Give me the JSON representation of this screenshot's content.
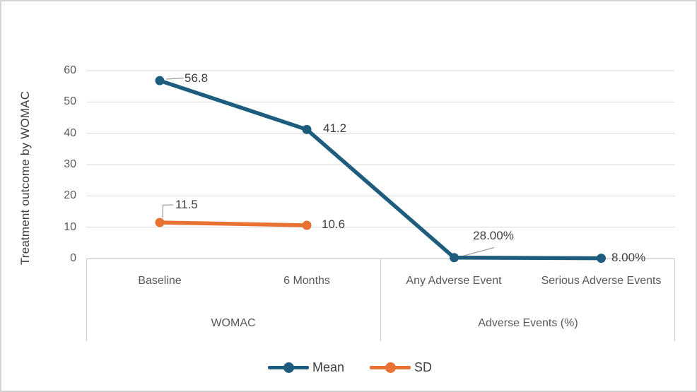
{
  "figure": {
    "background": "#ffffff",
    "border_color": "#d3d3d3"
  },
  "chart_data": {
    "type": "line",
    "title": "",
    "ylabel": "Treatment outcome by WOMAC",
    "xlabel": "",
    "ylim": [
      0,
      60
    ],
    "ytick_step": 10,
    "yticks": [
      "60",
      "50",
      "40",
      "30",
      "20",
      "10",
      "0"
    ],
    "grid": true,
    "legend_position": "bottom",
    "categories": [
      "Baseline",
      "6 Months",
      "Any Adverse Event",
      "Serious Adverse Events"
    ],
    "category_groups": [
      {
        "label": "WOMAC",
        "categories": [
          "Baseline",
          "6 Months"
        ]
      },
      {
        "label": "Adverse Events (%)",
        "categories": [
          "Any Adverse Event",
          "Serious Adverse Events"
        ]
      }
    ],
    "series": [
      {
        "name": "Mean",
        "color": "#1E5C7E",
        "values": [
          56.8,
          41.2,
          0.28,
          0.08
        ],
        "labels": [
          "56.8",
          "41.2",
          "28.00%",
          "8.00%"
        ]
      },
      {
        "name": "SD",
        "color": "#E97132",
        "values": [
          11.5,
          10.6,
          null,
          null
        ],
        "labels": [
          "11.5",
          "10.6",
          "",
          ""
        ]
      }
    ],
    "colors": {
      "gridline": "#D9D9D9",
      "axis_line": "#BFBFBF",
      "category_divider": "#C8C8C8",
      "tick_text": "#595959",
      "data_label_text": "#3F3F3F",
      "leader_line": "#A0A0A0"
    }
  }
}
